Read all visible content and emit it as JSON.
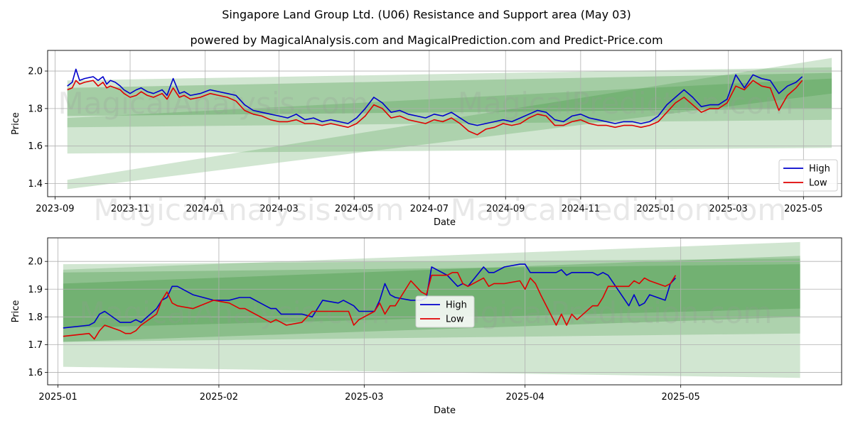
{
  "title": "Singapore Land Group Ltd. (U06) Resistance and Support area (May 03)",
  "subtitle": "powered by MagicalAnalysis.com and MagicalPrediction.com and Predict-Price.com",
  "watermarks": [
    "MagicalAnalysis.com",
    "MagicalPrediction.com"
  ],
  "colors": {
    "high": "#0000cc",
    "low": "#e00000",
    "band": "#2e8b2e",
    "grid": "#b0b0b0"
  },
  "chart_data": [
    {
      "type": "line",
      "xlabel": "Date",
      "ylabel": "Price",
      "xlim": [
        "2023-08-26",
        "2025-06-01"
      ],
      "ylim": [
        1.33,
        2.11
      ],
      "xticks": [
        "2023-09",
        "2023-11",
        "2024-01",
        "2024-03",
        "2024-05",
        "2024-07",
        "2024-09",
        "2024-11",
        "2025-01",
        "2025-03",
        "2025-05"
      ],
      "yticks": [
        "1.4",
        "1.6",
        "1.8",
        "2.0"
      ],
      "grid": true,
      "legend": "lower-right",
      "series": [
        {
          "name": "High",
          "x": [
            "2023-09-11",
            "2023-09-15",
            "2023-09-18",
            "2023-09-21",
            "2023-09-25",
            "2023-10-02",
            "2023-10-06",
            "2023-10-10",
            "2023-10-13",
            "2023-10-16",
            "2023-10-20",
            "2023-10-24",
            "2023-10-27",
            "2023-11-01",
            "2023-11-06",
            "2023-11-10",
            "2023-11-15",
            "2023-11-20",
            "2023-11-27",
            "2023-12-01",
            "2023-12-06",
            "2023-12-11",
            "2023-12-15",
            "2023-12-20",
            "2023-12-28",
            "2024-01-05",
            "2024-01-12",
            "2024-01-19",
            "2024-01-26",
            "2024-02-02",
            "2024-02-09",
            "2024-02-16",
            "2024-02-23",
            "2024-03-01",
            "2024-03-08",
            "2024-03-15",
            "2024-03-22",
            "2024-03-29",
            "2024-04-05",
            "2024-04-12",
            "2024-04-19",
            "2024-04-26",
            "2024-05-03",
            "2024-05-10",
            "2024-05-17",
            "2024-05-24",
            "2024-05-31",
            "2024-06-07",
            "2024-06-14",
            "2024-06-21",
            "2024-06-28",
            "2024-07-05",
            "2024-07-12",
            "2024-07-19",
            "2024-07-26",
            "2024-08-02",
            "2024-08-09",
            "2024-08-16",
            "2024-08-23",
            "2024-08-30",
            "2024-09-06",
            "2024-09-13",
            "2024-09-20",
            "2024-09-27",
            "2024-10-04",
            "2024-10-11",
            "2024-10-18",
            "2024-10-25",
            "2024-11-01",
            "2024-11-08",
            "2024-11-15",
            "2024-11-22",
            "2024-11-29",
            "2024-12-06",
            "2024-12-13",
            "2024-12-20",
            "2024-12-27",
            "2025-01-03",
            "2025-01-10",
            "2025-01-17",
            "2025-01-24",
            "2025-01-31",
            "2025-02-07",
            "2025-02-14",
            "2025-02-21",
            "2025-02-28",
            "2025-03-07",
            "2025-03-14",
            "2025-03-21",
            "2025-03-28",
            "2025-04-04",
            "2025-04-11",
            "2025-04-18",
            "2025-04-25",
            "2025-04-30"
          ],
          "y": [
            1.92,
            1.94,
            2.01,
            1.95,
            1.96,
            1.97,
            1.95,
            1.97,
            1.93,
            1.95,
            1.94,
            1.92,
            1.9,
            1.88,
            1.9,
            1.91,
            1.89,
            1.88,
            1.9,
            1.87,
            1.96,
            1.88,
            1.89,
            1.87,
            1.88,
            1.9,
            1.89,
            1.88,
            1.87,
            1.82,
            1.79,
            1.78,
            1.77,
            1.76,
            1.75,
            1.77,
            1.74,
            1.75,
            1.73,
            1.74,
            1.73,
            1.72,
            1.75,
            1.8,
            1.86,
            1.83,
            1.78,
            1.79,
            1.77,
            1.76,
            1.75,
            1.77,
            1.76,
            1.78,
            1.75,
            1.72,
            1.71,
            1.72,
            1.73,
            1.74,
            1.73,
            1.75,
            1.77,
            1.79,
            1.78,
            1.74,
            1.73,
            1.76,
            1.77,
            1.75,
            1.74,
            1.73,
            1.72,
            1.73,
            1.73,
            1.72,
            1.73,
            1.76,
            1.82,
            1.86,
            1.9,
            1.86,
            1.81,
            1.82,
            1.82,
            1.85,
            1.98,
            1.91,
            1.98,
            1.96,
            1.95,
            1.88,
            1.92,
            1.94,
            1.97
          ]
        },
        {
          "name": "Low",
          "x": [
            "2023-09-11",
            "2023-09-15",
            "2023-09-18",
            "2023-09-21",
            "2023-09-25",
            "2023-10-02",
            "2023-10-06",
            "2023-10-10",
            "2023-10-13",
            "2023-10-16",
            "2023-10-20",
            "2023-10-24",
            "2023-10-27",
            "2023-11-01",
            "2023-11-06",
            "2023-11-10",
            "2023-11-15",
            "2023-11-20",
            "2023-11-27",
            "2023-12-01",
            "2023-12-06",
            "2023-12-11",
            "2023-12-15",
            "2023-12-20",
            "2023-12-28",
            "2024-01-05",
            "2024-01-12",
            "2024-01-19",
            "2024-01-26",
            "2024-02-02",
            "2024-02-09",
            "2024-02-16",
            "2024-02-23",
            "2024-03-01",
            "2024-03-08",
            "2024-03-15",
            "2024-03-22",
            "2024-03-29",
            "2024-04-05",
            "2024-04-12",
            "2024-04-19",
            "2024-04-26",
            "2024-05-03",
            "2024-05-10",
            "2024-05-17",
            "2024-05-24",
            "2024-05-31",
            "2024-06-07",
            "2024-06-14",
            "2024-06-21",
            "2024-06-28",
            "2024-07-05",
            "2024-07-12",
            "2024-07-19",
            "2024-07-26",
            "2024-08-02",
            "2024-08-09",
            "2024-08-16",
            "2024-08-23",
            "2024-08-30",
            "2024-09-06",
            "2024-09-13",
            "2024-09-20",
            "2024-09-27",
            "2024-10-04",
            "2024-10-11",
            "2024-10-18",
            "2024-10-25",
            "2024-11-01",
            "2024-11-08",
            "2024-11-15",
            "2024-11-22",
            "2024-11-29",
            "2024-12-06",
            "2024-12-13",
            "2024-12-20",
            "2024-12-27",
            "2025-01-03",
            "2025-01-10",
            "2025-01-17",
            "2025-01-24",
            "2025-01-31",
            "2025-02-07",
            "2025-02-14",
            "2025-02-21",
            "2025-02-28",
            "2025-03-07",
            "2025-03-14",
            "2025-03-21",
            "2025-03-28",
            "2025-04-04",
            "2025-04-11",
            "2025-04-18",
            "2025-04-25",
            "2025-04-30"
          ],
          "y": [
            1.9,
            1.91,
            1.95,
            1.93,
            1.94,
            1.95,
            1.92,
            1.94,
            1.91,
            1.92,
            1.91,
            1.9,
            1.88,
            1.86,
            1.87,
            1.89,
            1.87,
            1.86,
            1.88,
            1.85,
            1.91,
            1.86,
            1.87,
            1.85,
            1.86,
            1.88,
            1.87,
            1.86,
            1.84,
            1.79,
            1.77,
            1.76,
            1.74,
            1.73,
            1.73,
            1.74,
            1.72,
            1.72,
            1.71,
            1.72,
            1.71,
            1.7,
            1.72,
            1.76,
            1.82,
            1.8,
            1.75,
            1.76,
            1.74,
            1.73,
            1.72,
            1.74,
            1.73,
            1.75,
            1.72,
            1.68,
            1.66,
            1.69,
            1.7,
            1.72,
            1.71,
            1.72,
            1.75,
            1.77,
            1.76,
            1.71,
            1.71,
            1.73,
            1.74,
            1.72,
            1.71,
            1.71,
            1.7,
            1.71,
            1.71,
            1.7,
            1.71,
            1.73,
            1.78,
            1.83,
            1.86,
            1.82,
            1.78,
            1.8,
            1.8,
            1.83,
            1.92,
            1.9,
            1.95,
            1.92,
            1.91,
            1.79,
            1.87,
            1.91,
            1.95
          ]
        }
      ]
    },
    {
      "type": "line",
      "xlabel": "Date",
      "ylabel": "Price",
      "xlim": [
        "2024-12-30",
        "2025-06-01"
      ],
      "ylim": [
        1.555,
        2.085
      ],
      "xticks": [
        "2025-01",
        "2025-02",
        "2025-03",
        "2025-04",
        "2025-05"
      ],
      "yticks": [
        "1.6",
        "1.7",
        "1.8",
        "1.9",
        "2.0"
      ],
      "grid": true,
      "legend": "center",
      "series": [
        {
          "name": "High",
          "x": [
            "2025-01-02",
            "2025-01-07",
            "2025-01-08",
            "2025-01-09",
            "2025-01-10",
            "2025-01-13",
            "2025-01-14",
            "2025-01-15",
            "2025-01-16",
            "2025-01-17",
            "2025-01-20",
            "2025-01-21",
            "2025-01-22",
            "2025-01-23",
            "2025-01-24",
            "2025-01-27",
            "2025-01-31",
            "2025-02-03",
            "2025-02-05",
            "2025-02-06",
            "2025-02-07",
            "2025-02-10",
            "2025-02-11",
            "2025-02-12",
            "2025-02-13",
            "2025-02-14",
            "2025-02-17",
            "2025-02-19",
            "2025-02-20",
            "2025-02-21",
            "2025-02-24",
            "2025-02-25",
            "2025-02-26",
            "2025-02-27",
            "2025-02-28",
            "2025-03-03",
            "2025-03-04",
            "2025-03-05",
            "2025-03-06",
            "2025-03-07",
            "2025-03-10",
            "2025-03-11",
            "2025-03-12",
            "2025-03-13",
            "2025-03-14",
            "2025-03-17",
            "2025-03-18",
            "2025-03-19",
            "2025-03-20",
            "2025-03-21",
            "2025-03-24",
            "2025-03-25",
            "2025-03-26",
            "2025-03-27",
            "2025-03-28",
            "2025-03-31",
            "2025-04-01",
            "2025-04-02",
            "2025-04-03",
            "2025-04-04",
            "2025-04-07",
            "2025-04-08",
            "2025-04-09",
            "2025-04-10",
            "2025-04-11",
            "2025-04-14",
            "2025-04-15",
            "2025-04-16",
            "2025-04-17",
            "2025-04-21",
            "2025-04-22",
            "2025-04-23",
            "2025-04-24",
            "2025-04-25",
            "2025-04-28",
            "2025-04-29",
            "2025-04-30"
          ],
          "y": [
            1.76,
            1.77,
            1.78,
            1.81,
            1.82,
            1.78,
            1.78,
            1.78,
            1.79,
            1.78,
            1.83,
            1.86,
            1.87,
            1.91,
            1.91,
            1.88,
            1.86,
            1.86,
            1.87,
            1.87,
            1.87,
            1.84,
            1.83,
            1.83,
            1.81,
            1.81,
            1.81,
            1.8,
            1.83,
            1.86,
            1.85,
            1.86,
            1.85,
            1.84,
            1.82,
            1.82,
            1.86,
            1.92,
            1.88,
            1.87,
            1.86,
            1.86,
            1.86,
            1.87,
            1.98,
            1.95,
            1.93,
            1.91,
            1.92,
            1.91,
            1.98,
            1.96,
            1.96,
            1.97,
            1.98,
            1.99,
            1.99,
            1.96,
            1.96,
            1.96,
            1.96,
            1.97,
            1.95,
            1.96,
            1.96,
            1.96,
            1.95,
            1.96,
            1.95,
            1.84,
            1.88,
            1.84,
            1.85,
            1.88,
            1.86,
            1.92,
            1.94
          ]
        },
        {
          "name": "Low",
          "x": [
            "2025-01-02",
            "2025-01-07",
            "2025-01-08",
            "2025-01-09",
            "2025-01-10",
            "2025-01-13",
            "2025-01-14",
            "2025-01-15",
            "2025-01-16",
            "2025-01-17",
            "2025-01-20",
            "2025-01-21",
            "2025-01-22",
            "2025-01-23",
            "2025-01-24",
            "2025-01-27",
            "2025-01-31",
            "2025-02-03",
            "2025-02-05",
            "2025-02-06",
            "2025-02-07",
            "2025-02-10",
            "2025-02-11",
            "2025-02-12",
            "2025-02-13",
            "2025-02-14",
            "2025-02-17",
            "2025-02-19",
            "2025-02-20",
            "2025-02-21",
            "2025-02-24",
            "2025-02-25",
            "2025-02-26",
            "2025-02-27",
            "2025-02-28",
            "2025-03-03",
            "2025-03-04",
            "2025-03-05",
            "2025-03-06",
            "2025-03-07",
            "2025-03-10",
            "2025-03-11",
            "2025-03-12",
            "2025-03-13",
            "2025-03-14",
            "2025-03-17",
            "2025-03-18",
            "2025-03-19",
            "2025-03-20",
            "2025-03-21",
            "2025-03-24",
            "2025-03-25",
            "2025-03-26",
            "2025-03-27",
            "2025-03-28",
            "2025-03-31",
            "2025-04-01",
            "2025-04-02",
            "2025-04-03",
            "2025-04-04",
            "2025-04-07",
            "2025-04-08",
            "2025-04-09",
            "2025-04-10",
            "2025-04-11",
            "2025-04-14",
            "2025-04-15",
            "2025-04-16",
            "2025-04-17",
            "2025-04-21",
            "2025-04-22",
            "2025-04-23",
            "2025-04-24",
            "2025-04-25",
            "2025-04-28",
            "2025-04-29",
            "2025-04-30"
          ],
          "y": [
            1.73,
            1.74,
            1.72,
            1.75,
            1.77,
            1.75,
            1.74,
            1.74,
            1.75,
            1.77,
            1.81,
            1.86,
            1.89,
            1.85,
            1.84,
            1.83,
            1.86,
            1.85,
            1.83,
            1.83,
            1.82,
            1.79,
            1.78,
            1.79,
            1.78,
            1.77,
            1.78,
            1.82,
            1.82,
            1.82,
            1.82,
            1.82,
            1.82,
            1.77,
            1.79,
            1.82,
            1.85,
            1.81,
            1.84,
            1.84,
            1.93,
            1.91,
            1.89,
            1.88,
            1.95,
            1.95,
            1.96,
            1.96,
            1.92,
            1.91,
            1.94,
            1.91,
            1.92,
            1.92,
            1.92,
            1.93,
            1.9,
            1.94,
            1.92,
            1.88,
            1.77,
            1.81,
            1.77,
            1.81,
            1.79,
            1.84,
            1.84,
            1.87,
            1.91,
            1.91,
            1.93,
            1.92,
            1.94,
            1.93,
            1.91,
            1.92,
            1.95
          ]
        }
      ]
    }
  ]
}
